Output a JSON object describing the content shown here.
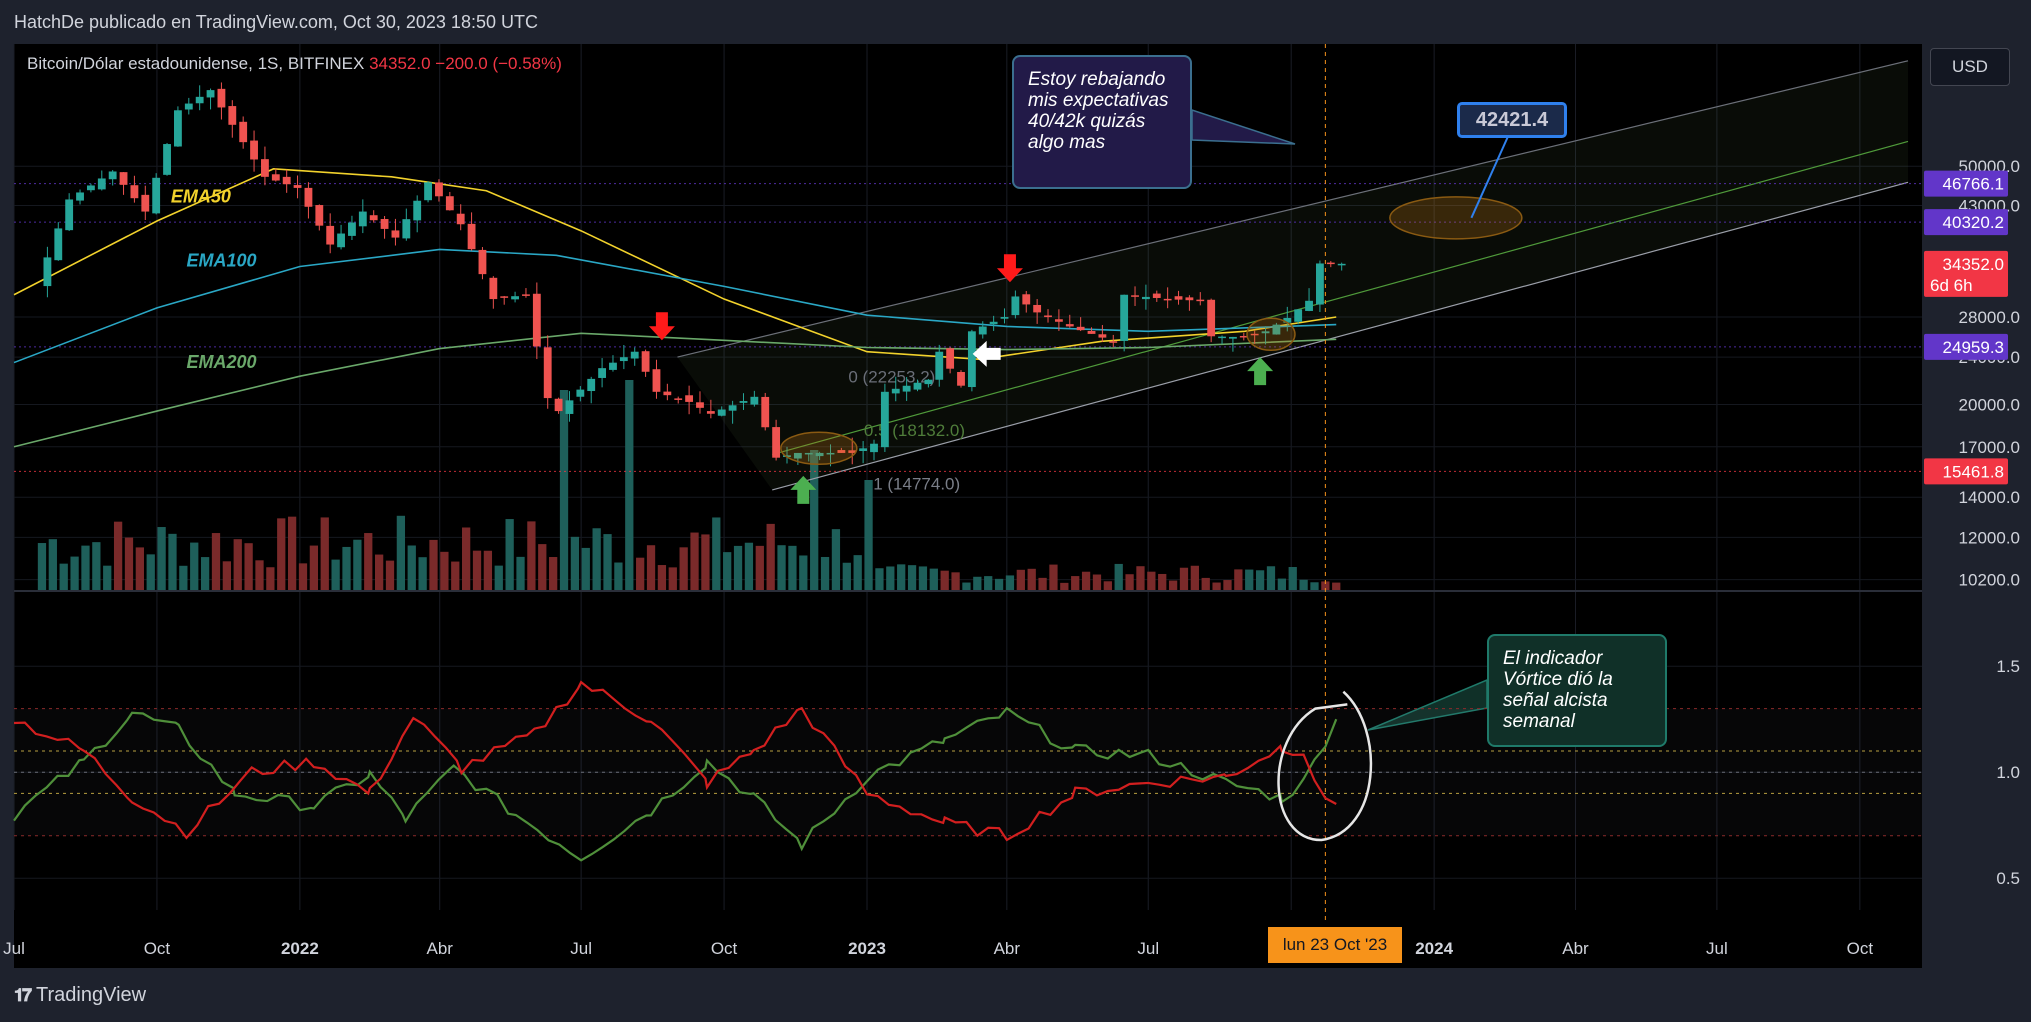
{
  "header": {
    "publisher_text": "HatchDe publicado en TradingView.com, Oct 30, 2023 18:50 UTC"
  },
  "symbol": {
    "name": "Bitcoin/Dólar estadounidense, 1S, BITFINEX",
    "price": "34352.0",
    "change": "−200.0 (−0.58%)"
  },
  "currency_button": "USD",
  "colors": {
    "bg": "#000000",
    "panel_bg": "#1e222d",
    "up": "#26a69a",
    "down": "#ef5350",
    "ema50": "#f2d22c",
    "ema100": "#2aa7c5",
    "ema200": "#6aa86a",
    "vi_plus": "#4f8f3a",
    "vi_minus": "#d21f1f",
    "accent": "#2962ff",
    "label_purple": "#6236c9",
    "label_red": "#f23645",
    "label_time": "#f7931a"
  },
  "chart_data": [
    {
      "type": "candlestick",
      "title": "",
      "y_scale": "log",
      "ylim": [
        9800,
        80000
      ],
      "xlim": [
        "2021-07-01",
        "2024-11-10"
      ],
      "y_ticks": [
        "50000.0",
        "43000.0",
        "28000.0",
        "24000.0",
        "20000.0",
        "17000.0",
        "14000.0",
        "12000.0",
        "10200.0"
      ],
      "y_tick_values": [
        50000,
        43000,
        28000,
        24000,
        20000,
        17000,
        14000,
        12000,
        10200
      ],
      "x_ticks": [
        "Jul",
        "Oct",
        "2022",
        "Abr",
        "Jul",
        "Oct",
        "2023",
        "Abr",
        "Jul",
        "Oct",
        "2024",
        "Abr",
        "Jul",
        "Oct"
      ],
      "x_tick_dates": [
        "2021-07-01",
        "2021-10-01",
        "2022-01-01",
        "2022-04-01",
        "2022-07-01",
        "2022-10-01",
        "2023-01-01",
        "2023-04-01",
        "2023-07-01",
        "2023-10-01",
        "2024-01-01",
        "2024-04-01",
        "2024-07-01",
        "2024-10-01"
      ],
      "x_tick_bold": [
        false,
        false,
        true,
        false,
        false,
        false,
        true,
        false,
        false,
        false,
        true,
        false,
        false,
        false
      ],
      "price_keypoints": [
        [
          "2021-07-19",
          31500
        ],
        [
          "2021-08-09",
          44000
        ],
        [
          "2021-09-06",
          49000
        ],
        [
          "2021-09-27",
          42000
        ],
        [
          "2021-10-18",
          62000
        ],
        [
          "2021-11-08",
          67000
        ],
        [
          "2021-12-13",
          48000
        ],
        [
          "2022-01-03",
          46000
        ],
        [
          "2022-01-24",
          37000
        ],
        [
          "2022-02-14",
          42000
        ],
        [
          "2022-03-07",
          38000
        ],
        [
          "2022-03-28",
          47000
        ],
        [
          "2022-04-18",
          40000
        ],
        [
          "2022-05-09",
          30000
        ],
        [
          "2022-05-30",
          30500
        ],
        [
          "2022-06-13",
          20500
        ],
        [
          "2022-06-20",
          19500
        ],
        [
          "2022-07-18",
          23000
        ],
        [
          "2022-08-08",
          24500
        ],
        [
          "2022-08-22",
          21000
        ],
        [
          "2022-09-12",
          20200
        ],
        [
          "2022-09-26",
          19300
        ],
        [
          "2022-10-24",
          20600
        ],
        [
          "2022-11-07",
          16300
        ],
        [
          "2022-11-21",
          16600
        ],
        [
          "2022-12-26",
          16600
        ],
        [
          "2023-01-09",
          17200
        ],
        [
          "2023-01-16",
          21000
        ],
        [
          "2023-02-13",
          22000
        ],
        [
          "2023-02-20",
          24500
        ],
        [
          "2023-03-06",
          21500
        ],
        [
          "2023-03-13",
          26500
        ],
        [
          "2023-04-03",
          28000
        ],
        [
          "2023-04-10",
          30300
        ],
        [
          "2023-04-24",
          28500
        ],
        [
          "2023-05-15",
          27000
        ],
        [
          "2023-06-12",
          25500
        ],
        [
          "2023-06-19",
          30500
        ],
        [
          "2023-07-17",
          30000
        ],
        [
          "2023-08-07",
          29800
        ],
        [
          "2023-08-14",
          26000
        ],
        [
          "2023-09-04",
          25900
        ],
        [
          "2023-09-18",
          26500
        ],
        [
          "2023-10-02",
          27900
        ],
        [
          "2023-10-16",
          29800
        ],
        [
          "2023-10-23",
          34400
        ],
        [
          "2023-10-30",
          34352
        ]
      ],
      "ema_series": [
        {
          "name": "EMA50",
          "points": [
            [
              "2021-07-01",
              30500
            ],
            [
              "2021-10-01",
              40500
            ],
            [
              "2021-12-15",
              49500
            ],
            [
              "2022-03-01",
              48000
            ],
            [
              "2022-05-01",
              45500
            ],
            [
              "2022-07-01",
              39000
            ],
            [
              "2022-10-01",
              30000
            ],
            [
              "2023-01-01",
              24500
            ],
            [
              "2023-03-15",
              23800
            ],
            [
              "2023-06-01",
              25500
            ],
            [
              "2023-09-01",
              26500
            ],
            [
              "2023-10-30",
              28000
            ]
          ]
        },
        {
          "name": "EMA100",
          "points": [
            [
              "2021-07-01",
              23500
            ],
            [
              "2021-10-01",
              29000
            ],
            [
              "2022-01-01",
              34000
            ],
            [
              "2022-04-01",
              36300
            ],
            [
              "2022-06-15",
              35500
            ],
            [
              "2022-10-01",
              31500
            ],
            [
              "2023-01-01",
              28200
            ],
            [
              "2023-04-01",
              27000
            ],
            [
              "2023-07-01",
              26500
            ],
            [
              "2023-10-30",
              27200
            ]
          ]
        },
        {
          "name": "EMA200",
          "points": [
            [
              "2021-07-01",
              17000
            ],
            [
              "2021-10-01",
              19500
            ],
            [
              "2022-01-01",
              22300
            ],
            [
              "2022-04-01",
              24800
            ],
            [
              "2022-07-01",
              26300
            ],
            [
              "2022-10-01",
              25600
            ],
            [
              "2023-01-01",
              24900
            ],
            [
              "2023-04-01",
              24700
            ],
            [
              "2023-07-01",
              24900
            ],
            [
              "2023-10-30",
              25700
            ]
          ]
        }
      ],
      "fib_labels": [
        "0 (22253.2)",
        "0.5 (18132.0)",
        "1 (14774.0)"
      ],
      "ema_labels": [
        "EMA50",
        "EMA100",
        "EMA200"
      ],
      "horizontal_levels": [
        {
          "value": 46766.1,
          "label": "46766.1",
          "color": "#6236c9"
        },
        {
          "value": 40320.2,
          "label": "40320.2",
          "color": "#6236c9"
        },
        {
          "value": 24959.3,
          "label": "24959.3",
          "color": "#6236c9"
        },
        {
          "value": 15461.8,
          "label": "15461.8",
          "color": "#f23645"
        }
      ],
      "last_price_label": {
        "value": 34352.0,
        "label": "34352.0",
        "countdown": "6d 6h"
      },
      "target_label": "42421.4",
      "crosshair_time_label": "lun 23 Oct '23",
      "annotation_text": "Estoy rebajando mis expectativas 40/42k quizás algo mas"
    },
    {
      "type": "line",
      "title": "",
      "ylim": [
        0.35,
        1.85
      ],
      "y_ticks": [
        "1.5",
        "1.0",
        "0.5"
      ],
      "y_tick_values": [
        1.5,
        1.0,
        0.5
      ],
      "series": [
        {
          "name": "",
          "color": "#4f8f3a",
          "points": [
            [
              "2021-07-01",
              0.8
            ],
            [
              "2021-08-15",
              1.05
            ],
            [
              "2021-09-15",
              1.28
            ],
            [
              "2021-10-15",
              1.2
            ],
            [
              "2021-11-20",
              0.9
            ],
            [
              "2022-01-10",
              0.84
            ],
            [
              "2022-02-15",
              0.99
            ],
            [
              "2022-03-10",
              0.78
            ],
            [
              "2022-04-10",
              1.02
            ],
            [
              "2022-05-20",
              0.8
            ],
            [
              "2022-07-01",
              0.6
            ],
            [
              "2022-08-15",
              0.82
            ],
            [
              "2022-09-20",
              1.05
            ],
            [
              "2022-10-20",
              0.88
            ],
            [
              "2022-11-20",
              0.66
            ],
            [
              "2023-01-01",
              0.98
            ],
            [
              "2023-02-20",
              1.15
            ],
            [
              "2023-04-01",
              1.28
            ],
            [
              "2023-05-15",
              1.1
            ],
            [
              "2023-07-01",
              1.08
            ],
            [
              "2023-08-20",
              0.95
            ],
            [
              "2023-09-25",
              0.88
            ],
            [
              "2023-10-09",
              0.95
            ],
            [
              "2023-10-23",
              1.15
            ],
            [
              "2023-10-30",
              1.25
            ]
          ]
        },
        {
          "name": "",
          "color": "#d21f1f",
          "points": [
            [
              "2021-07-01",
              1.25
            ],
            [
              "2021-08-15",
              1.1
            ],
            [
              "2021-09-15",
              0.88
            ],
            [
              "2021-10-20",
              0.72
            ],
            [
              "2021-12-01",
              1.0
            ],
            [
              "2022-01-10",
              1.05
            ],
            [
              "2022-02-15",
              0.9
            ],
            [
              "2022-03-15",
              1.26
            ],
            [
              "2022-04-15",
              1.02
            ],
            [
              "2022-06-01",
              1.18
            ],
            [
              "2022-07-01",
              1.42
            ],
            [
              "2022-08-15",
              1.25
            ],
            [
              "2022-09-20",
              0.95
            ],
            [
              "2022-10-20",
              1.1
            ],
            [
              "2022-11-20",
              1.3
            ],
            [
              "2023-01-01",
              0.9
            ],
            [
              "2023-02-20",
              0.76
            ],
            [
              "2023-04-01",
              0.7
            ],
            [
              "2023-05-15",
              0.9
            ],
            [
              "2023-07-01",
              0.95
            ],
            [
              "2023-08-20",
              0.98
            ],
            [
              "2023-09-25",
              1.12
            ],
            [
              "2023-10-09",
              1.1
            ],
            [
              "2023-10-23",
              0.85
            ],
            [
              "2023-10-30",
              0.85
            ]
          ]
        }
      ],
      "reference_lines": [
        1.3,
        1.1,
        1.0,
        0.9,
        0.7
      ],
      "annotation_text": "El indicador Vórtice dió la señal alcista semanal"
    }
  ],
  "footer": {
    "brand": "TradingView"
  }
}
